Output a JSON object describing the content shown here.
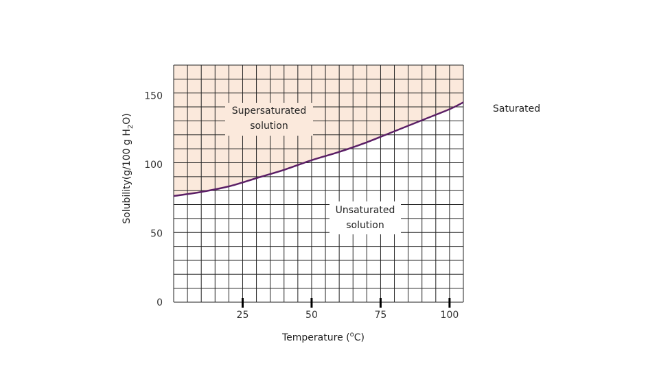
{
  "chart_data": {
    "type": "line",
    "title": "",
    "xlabel": "Temperature (oC)",
    "ylabel": "Solubility(g/100 g H2O)",
    "xlim": [
      0,
      105
    ],
    "ylim": [
      0,
      172
    ],
    "grid": true,
    "x_ticks": [
      {
        "value": 25,
        "label": "25"
      },
      {
        "value": 50,
        "label": "50"
      },
      {
        "value": 75,
        "label": "75"
      },
      {
        "value": 100,
        "label": "100"
      }
    ],
    "y_ticks": [
      {
        "value": 0,
        "label": "0"
      },
      {
        "value": 50,
        "label": "50"
      },
      {
        "value": 100,
        "label": "100"
      },
      {
        "value": 150,
        "label": "150"
      }
    ],
    "series": [
      {
        "name": "Saturated",
        "color": "#5b1f66",
        "x": [
          0,
          10,
          20,
          30,
          40,
          50,
          60,
          70,
          80,
          90,
          100,
          105
        ],
        "y": [
          77,
          80,
          84,
          90,
          96,
          103,
          109,
          116,
          124,
          132,
          140,
          145
        ]
      }
    ],
    "regions": {
      "supersaturated": {
        "line1": "Supersaturated",
        "line2": "solution",
        "color": "#fbe9dc"
      },
      "unsaturated": {
        "line1": "Unsaturated",
        "line2": "solution"
      }
    },
    "curve_label": "Saturated"
  }
}
